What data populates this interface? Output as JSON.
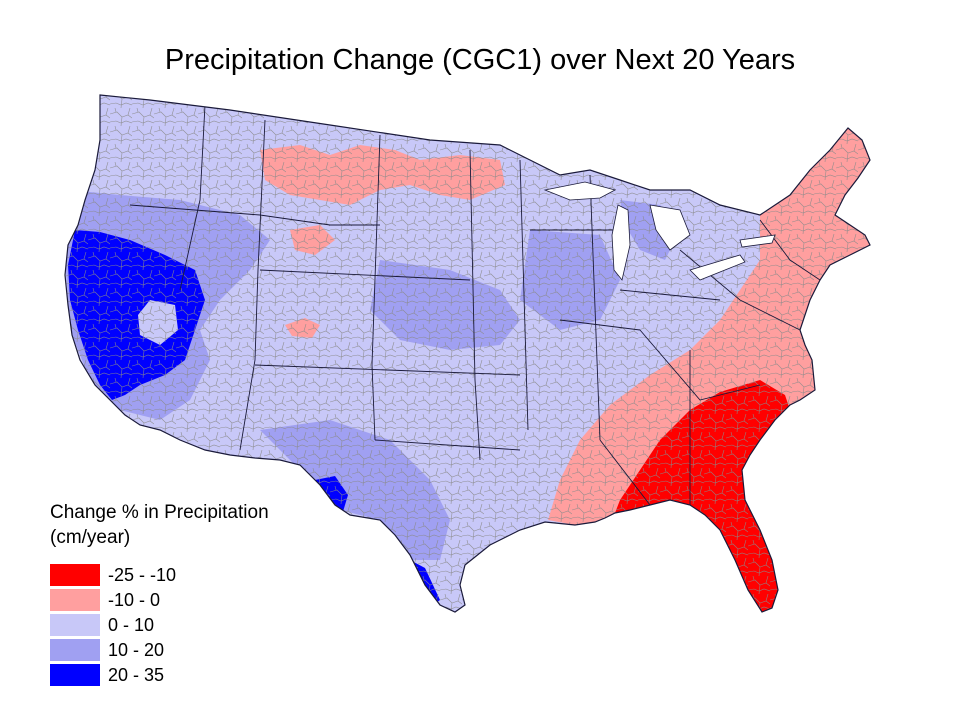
{
  "title": "Precipitation Change (CGC1) over Next 20 Years",
  "map": {
    "region_name": "conterminous-united-states",
    "boundary_color": "#8a8a8a",
    "state_line_color": "#1a1a3a"
  },
  "legend": {
    "heading_line1": "Change % in Precipitation",
    "heading_line2": "(cm/year)",
    "classes": [
      {
        "label": "-25 - -10",
        "color": "#ff0000"
      },
      {
        "label": "-10 - 0",
        "color": "#ff9f9f"
      },
      {
        "label": "0 - 10",
        "color": "#c8c8f8"
      },
      {
        "label": "10 - 20",
        "color": "#a0a0f2"
      },
      {
        "label": "20 - 35",
        "color": "#0000ff"
      }
    ]
  }
}
